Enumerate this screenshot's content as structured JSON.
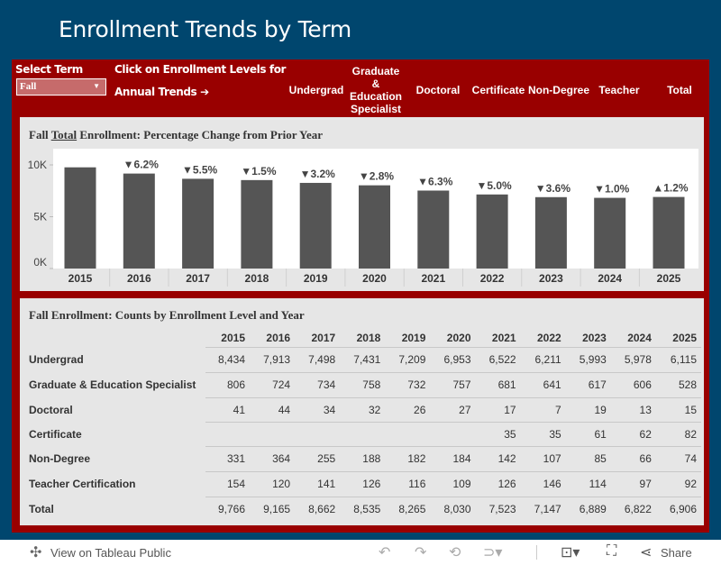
{
  "header": {
    "title": "Enrollment Trends by Term"
  },
  "controls": {
    "select_label": "Select Term",
    "select_value": "Fall",
    "hint_line1": "Click on Enrollment Levels for",
    "hint_line2": "Annual Trends ➔"
  },
  "levels": [
    "Undergrad",
    "Graduate & Education Specialist",
    "Doctoral",
    "Certificate",
    "Non-Degree",
    "Teacher",
    "Total"
  ],
  "colors": {
    "background": "#00466e",
    "panel": "#990000",
    "bar": "#555555"
  },
  "chart_title": {
    "prefix": "Fall",
    "underlined": "Total",
    "suffix": "Enrollment: Percentage Change from Prior Year"
  },
  "chart_data": {
    "type": "bar",
    "categories": [
      "2015",
      "2016",
      "2017",
      "2018",
      "2019",
      "2020",
      "2021",
      "2022",
      "2023",
      "2024",
      "2025"
    ],
    "values": [
      9766,
      9165,
      8662,
      8535,
      8265,
      8030,
      7523,
      7147,
      6889,
      6822,
      6906
    ],
    "labels": [
      "",
      "▼6.2%",
      "▼5.5%",
      "▼1.5%",
      "▼3.2%",
      "▼2.8%",
      "▼6.3%",
      "▼5.0%",
      "▼3.6%",
      "▼1.0%",
      "▲1.2%"
    ],
    "yticks": [
      "0K",
      "5K",
      "10K"
    ],
    "ylim": [
      0,
      11000
    ],
    "grid": false
  },
  "table": {
    "title": "Fall Enrollment: Counts by Enrollment Level and Year",
    "years": [
      "2015",
      "2016",
      "2017",
      "2018",
      "2019",
      "2020",
      "2021",
      "2022",
      "2023",
      "2024",
      "2025"
    ],
    "rows": [
      {
        "label": "Undergrad",
        "values": [
          "8,434",
          "7,913",
          "7,498",
          "7,431",
          "7,209",
          "6,953",
          "6,522",
          "6,211",
          "5,993",
          "5,978",
          "6,115"
        ]
      },
      {
        "label": "Graduate & Education Specialist",
        "values": [
          "806",
          "724",
          "734",
          "758",
          "732",
          "757",
          "681",
          "641",
          "617",
          "606",
          "528"
        ]
      },
      {
        "label": "Doctoral",
        "values": [
          "41",
          "44",
          "34",
          "32",
          "26",
          "27",
          "17",
          "7",
          "19",
          "13",
          "15"
        ]
      },
      {
        "label": "Certificate",
        "values": [
          "",
          "",
          "",
          "",
          "",
          "",
          "35",
          "35",
          "61",
          "62",
          "82"
        ]
      },
      {
        "label": "Non-Degree",
        "values": [
          "331",
          "364",
          "255",
          "188",
          "182",
          "184",
          "142",
          "107",
          "85",
          "66",
          "74"
        ]
      },
      {
        "label": "Teacher Certification",
        "values": [
          "154",
          "120",
          "141",
          "126",
          "116",
          "109",
          "126",
          "146",
          "114",
          "97",
          "92"
        ]
      },
      {
        "label": "Total",
        "values": [
          "9,766",
          "9,165",
          "8,662",
          "8,535",
          "8,265",
          "8,030",
          "7,523",
          "7,147",
          "6,889",
          "6,822",
          "6,906"
        ]
      }
    ]
  },
  "toolbar": {
    "view_label": "View on Tableau Public",
    "share_label": "Share"
  }
}
